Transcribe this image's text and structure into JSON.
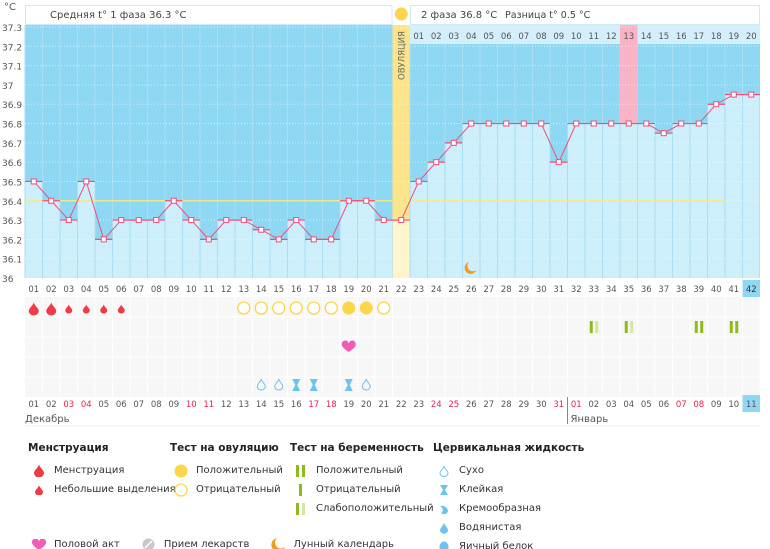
{
  "chart_data": {
    "type": "line",
    "unit_label": "°C",
    "ylim": [
      36,
      37.3
    ],
    "yticks": [
      "36",
      "36.1",
      "36.2",
      "36.3",
      "36.4",
      "36.5",
      "36.6",
      "36.7",
      "36.8",
      "36.9",
      "37",
      "37.1",
      "37.2",
      "37.3"
    ],
    "grid": true,
    "phase1_label": "Средняя t° 1 фаза 36.3 °C",
    "phase2_label": "2 фаза 36.8 °C",
    "diff_label": "Разница t° 0.5 °C",
    "ovulation_label": "ОВУЛЯЦИЯ",
    "ovulation_day": 22,
    "coverline": 36.4,
    "cycle_days": [
      "01",
      "02",
      "03",
      "04",
      "05",
      "06",
      "07",
      "08",
      "09",
      "10",
      "11",
      "12",
      "13",
      "14",
      "15",
      "16",
      "17",
      "18",
      "19",
      "20",
      "21",
      "22",
      "23",
      "24",
      "25",
      "26",
      "27",
      "28",
      "29",
      "30",
      "31",
      "32",
      "33",
      "34",
      "35",
      "36",
      "37",
      "38",
      "39",
      "40",
      "41",
      "42"
    ],
    "temperatures": [
      36.5,
      36.4,
      36.3,
      36.5,
      36.2,
      36.3,
      36.3,
      36.3,
      36.4,
      36.3,
      36.2,
      36.3,
      36.3,
      36.25,
      36.2,
      36.3,
      36.2,
      36.2,
      36.4,
      36.4,
      36.3,
      36.3,
      36.5,
      36.6,
      36.7,
      36.8,
      36.8,
      36.8,
      36.8,
      36.8,
      36.6,
      36.8,
      36.8,
      36.8,
      36.8,
      36.8,
      36.75,
      36.8,
      36.8,
      36.9,
      36.95,
      36.95
    ],
    "post_ovulation_days": [
      "01",
      "02",
      "03",
      "04",
      "05",
      "06",
      "07",
      "08",
      "09",
      "10",
      "11",
      "12",
      "13",
      "14",
      "15",
      "16",
      "17",
      "18",
      "19",
      "20"
    ],
    "highlight_post_day": "13",
    "current_day": 42,
    "dates": [
      "01",
      "02",
      "03",
      "04",
      "05",
      "06",
      "07",
      "08",
      "09",
      "10",
      "11",
      "12",
      "13",
      "14",
      "15",
      "16",
      "17",
      "18",
      "19",
      "20",
      "21",
      "22",
      "23",
      "24",
      "25",
      "26",
      "27",
      "28",
      "29",
      "30",
      "31",
      "01",
      "02",
      "03",
      "04",
      "05",
      "06",
      "07",
      "08",
      "09",
      "10",
      "11"
    ],
    "weekend_days": [
      3,
      4,
      10,
      11,
      17,
      18,
      24,
      25,
      31,
      32,
      38,
      39
    ],
    "month_labels": [
      {
        "day": 1,
        "label": "Декабрь"
      },
      {
        "day": 32,
        "label": "Январь"
      }
    ],
    "menstruation": [
      {
        "day": 1,
        "type": "heavy"
      },
      {
        "day": 2,
        "type": "heavy"
      },
      {
        "day": 3,
        "type": "light"
      },
      {
        "day": 4,
        "type": "light"
      },
      {
        "day": 5,
        "type": "light"
      },
      {
        "day": 6,
        "type": "light"
      }
    ],
    "ovulation_tests": [
      {
        "day": 13,
        "type": "negative"
      },
      {
        "day": 14,
        "type": "negative"
      },
      {
        "day": 15,
        "type": "negative"
      },
      {
        "day": 16,
        "type": "negative"
      },
      {
        "day": 17,
        "type": "negative"
      },
      {
        "day": 18,
        "type": "negative"
      },
      {
        "day": 19,
        "type": "positive"
      },
      {
        "day": 20,
        "type": "positive"
      },
      {
        "day": 21,
        "type": "negative"
      }
    ],
    "pregnancy_tests": [
      {
        "day": 33,
        "type": "weak"
      },
      {
        "day": 35,
        "type": "weak"
      },
      {
        "day": 39,
        "type": "positive"
      },
      {
        "day": 41,
        "type": "positive"
      }
    ],
    "intercourse": [
      19
    ],
    "cervical_fluid": [
      {
        "day": 14,
        "type": "dry"
      },
      {
        "day": 15,
        "type": "dry"
      },
      {
        "day": 16,
        "type": "sticky"
      },
      {
        "day": 17,
        "type": "sticky"
      },
      {
        "day": 19,
        "type": "sticky"
      },
      {
        "day": 20,
        "type": "dry"
      }
    ],
    "lunar": [
      26
    ],
    "colors": {
      "bar": "#cdeefb",
      "bg": "#8fd8f3",
      "line": "#ef4f7a",
      "coverline": "#f5e88a",
      "ovulation": "#fde48a",
      "highlight": "#f9b3c6",
      "weekend": "#e8224f",
      "menstruation": "#f03a46",
      "ovu_test": "#fcd64a",
      "preg_test": "#8dbb1a",
      "heart": "#f25cb8",
      "cervical": "#6cc4ee",
      "moon": "#f39a1a"
    }
  },
  "legend": {
    "menstruation": {
      "title": "Менструация",
      "items": [
        "Менструация",
        "Небольшие выделения"
      ]
    },
    "ovulation_test": {
      "title": "Тест на овуляцию",
      "items": [
        "Положительный",
        "Отрицательный"
      ]
    },
    "pregnancy_test": {
      "title": "Тест на беременность",
      "items": [
        "Положительный",
        "Отрицательный",
        "Слабоположительный"
      ]
    },
    "cervical": {
      "title": "Цервикальная жидкость",
      "items": [
        "Сухо",
        "Клейкая",
        "Кремообразная",
        "Водянистая",
        "Яичный белок"
      ]
    },
    "other": [
      "Половой акт",
      "Прием лекарств",
      "Лунный календарь"
    ]
  }
}
